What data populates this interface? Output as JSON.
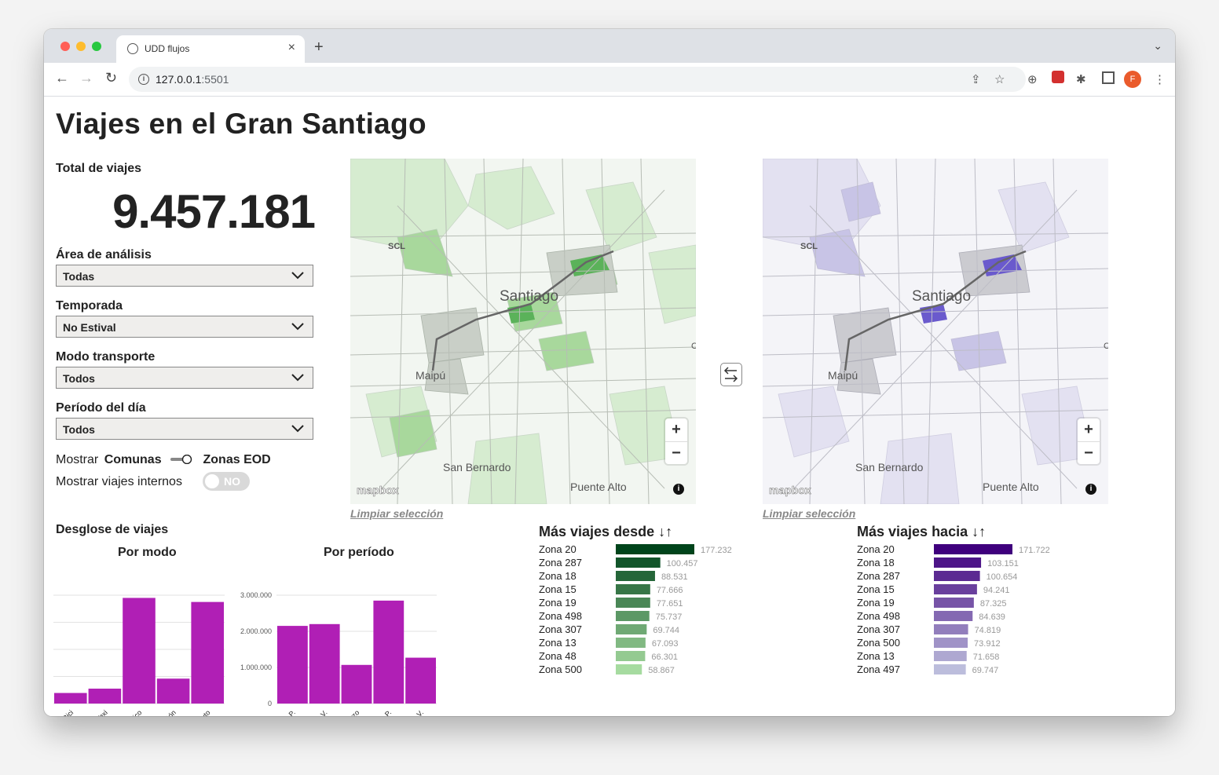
{
  "browser": {
    "tab_title": "UDD flujos",
    "url_host": "127.0.0.1",
    "url_port": ":5501",
    "profile_initial": "F"
  },
  "page": {
    "title": "Viajes en el Gran Santiago",
    "total_label": "Total de viajes",
    "total_value": "9.457.181"
  },
  "filters": {
    "area": {
      "label": "Área de análisis",
      "value": "Todas"
    },
    "season": {
      "label": "Temporada",
      "value": "No Estival"
    },
    "mode": {
      "label": "Modo transporte",
      "value": "Todos"
    },
    "period": {
      "label": "Período del día",
      "value": "Todos"
    },
    "show_label": "Mostrar",
    "show_left": "Comunas",
    "show_right": "Zonas EOD",
    "internal_label": "Mostrar viajes internos",
    "internal_value": "NO"
  },
  "maps": {
    "labels": {
      "scl": "SCL",
      "santiago": "Santiago",
      "maipu": "Maipú",
      "san_bernardo": "San Bernardo",
      "puente_alto": "Puente Alto",
      "c": "C"
    },
    "mapbox": "mapbox",
    "clear_label": "Limpiar selección",
    "origin_color": "#4caf50",
    "dest_color": "#6a5acd"
  },
  "breakdown": {
    "title": "Desglose de viajes",
    "by_mode_title": "Por modo",
    "by_period_title": "Por período",
    "bar_color": "#b01fb5"
  },
  "chart_data": [
    {
      "type": "bar",
      "title": "Por modo",
      "categories": [
        "Bici",
        "Taxi",
        "Público",
        "Peatón",
        "Auto"
      ],
      "values": [
        390000,
        550000,
        3900000,
        920000,
        3750000
      ],
      "ylim": [
        0,
        4000000
      ],
      "grid": true
    },
    {
      "type": "bar",
      "title": "Por período",
      "categories": [
        "Tarde P.",
        "Tarde V.",
        "Almuerzo",
        "Mañana P.",
        "Mañana V."
      ],
      "values": [
        2150000,
        2200000,
        1070000,
        2850000,
        1270000
      ],
      "yticks": [
        "0",
        "1.000.000",
        "2.000.000",
        "3.000.000"
      ],
      "ylim": [
        0,
        3000000
      ],
      "grid": true
    },
    {
      "type": "bar",
      "title": "Más viajes desde ↓↑",
      "categories": [
        "Zona 20",
        "Zona 287",
        "Zona 18",
        "Zona 15",
        "Zona 19",
        "Zona 498",
        "Zona 307",
        "Zona 13",
        "Zona 48",
        "Zona 500"
      ],
      "values": [
        177232,
        100457,
        88531,
        77666,
        77651,
        75737,
        69744,
        67093,
        66301,
        58867
      ],
      "labels": [
        "177.232",
        "100.457",
        "88.531",
        "77.666",
        "77.651",
        "75.737",
        "69.744",
        "67.093",
        "66.301",
        "58.867"
      ]
    },
    {
      "type": "bar",
      "title": "Más viajes hacia ↓↑",
      "categories": [
        "Zona 20",
        "Zona 18",
        "Zona 287",
        "Zona 15",
        "Zona 19",
        "Zona 498",
        "Zona 307",
        "Zona 500",
        "Zona 13",
        "Zona 497"
      ],
      "values": [
        171722,
        103151,
        100654,
        94241,
        87325,
        84639,
        74819,
        73912,
        71658,
        69747
      ],
      "labels": [
        "171.722",
        "103.151",
        "100.654",
        "94.241",
        "87.325",
        "84.639",
        "74.819",
        "73.912",
        "71.658",
        "69.747"
      ]
    }
  ]
}
